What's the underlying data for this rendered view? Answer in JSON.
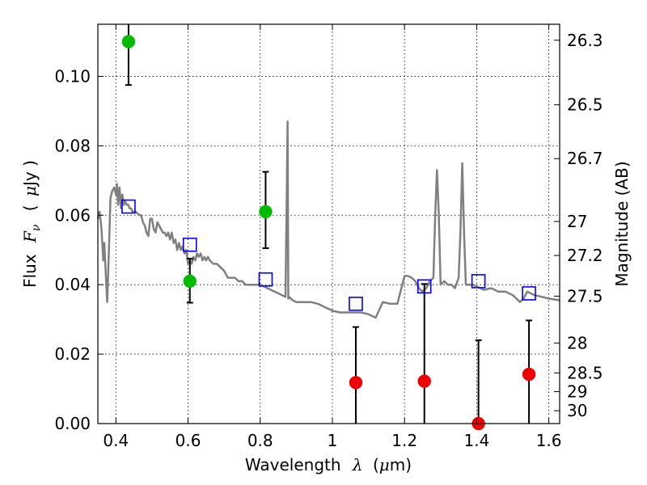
{
  "chart_data": {
    "type": "scatter",
    "title": "",
    "xlabel": {
      "prefix": "Wavelength",
      "symbol": "λ",
      "unit_open": "(",
      "unit_mu": "μ",
      "unit_rest": "m)"
    },
    "ylabel": {
      "prefix": "Flux",
      "symbol": "F",
      "sub": "ν",
      "unit_open": "(",
      "unit_mu": "μ",
      "unit_rest": "Jy )"
    },
    "y2label": "Magnitude (AB)",
    "xlim": [
      0.35,
      1.63
    ],
    "ylim": [
      0.0,
      0.115
    ],
    "grid": true,
    "x_ticks": [
      {
        "value": 0.4,
        "label": "0.4"
      },
      {
        "value": 0.6,
        "label": "0.6"
      },
      {
        "value": 0.8,
        "label": "0.8"
      },
      {
        "value": 1.0,
        "label": "1"
      },
      {
        "value": 1.2,
        "label": "1.2"
      },
      {
        "value": 1.4,
        "label": "1.4"
      },
      {
        "value": 1.6,
        "label": "1.6"
      }
    ],
    "y_ticks": [
      {
        "value": 0.0,
        "label": "0.00"
      },
      {
        "value": 0.02,
        "label": "0.02"
      },
      {
        "value": 0.04,
        "label": "0.04"
      },
      {
        "value": 0.06,
        "label": "0.06"
      },
      {
        "value": 0.08,
        "label": "0.08"
      },
      {
        "value": 0.1,
        "label": "0.10"
      }
    ],
    "y2_ticks": [
      {
        "flux": 0.1104,
        "label": "26.3"
      },
      {
        "flux": 0.0918,
        "label": "26.5"
      },
      {
        "flux": 0.0763,
        "label": "26.7"
      },
      {
        "flux": 0.0582,
        "label": "27"
      },
      {
        "flux": 0.0484,
        "label": "27.2"
      },
      {
        "flux": 0.0367,
        "label": "27.5"
      },
      {
        "flux": 0.0232,
        "label": "28"
      },
      {
        "flux": 0.0146,
        "label": "28.5"
      },
      {
        "flux": 0.0092,
        "label": "29"
      },
      {
        "flux": 0.0037,
        "label": "30"
      }
    ],
    "series": [
      {
        "name": "model-spectrum",
        "kind": "line",
        "color": "#808080",
        "x": [
          0.35,
          0.355,
          0.36,
          0.365,
          0.368,
          0.372,
          0.376,
          0.38,
          0.385,
          0.39,
          0.395,
          0.4,
          0.403,
          0.406,
          0.41,
          0.414,
          0.418,
          0.422,
          0.426,
          0.43,
          0.434,
          0.438,
          0.442,
          0.446,
          0.45,
          0.455,
          0.46,
          0.465,
          0.47,
          0.475,
          0.48,
          0.485,
          0.49,
          0.495,
          0.5,
          0.505,
          0.51,
          0.515,
          0.52,
          0.525,
          0.53,
          0.535,
          0.54,
          0.545,
          0.55,
          0.555,
          0.56,
          0.565,
          0.57,
          0.575,
          0.58,
          0.585,
          0.59,
          0.595,
          0.6,
          0.605,
          0.61,
          0.615,
          0.62,
          0.625,
          0.63,
          0.635,
          0.64,
          0.645,
          0.65,
          0.655,
          0.66,
          0.67,
          0.68,
          0.69,
          0.7,
          0.71,
          0.72,
          0.73,
          0.74,
          0.75,
          0.76,
          0.77,
          0.78,
          0.79,
          0.8,
          0.81,
          0.82,
          0.83,
          0.84,
          0.85,
          0.86,
          0.87,
          0.874,
          0.876,
          0.878,
          0.88,
          0.885,
          0.89,
          0.9,
          0.92,
          0.94,
          0.96,
          0.98,
          1.0,
          1.02,
          1.04,
          1.06,
          1.08,
          1.1,
          1.12,
          1.14,
          1.16,
          1.18,
          1.2,
          1.21,
          1.22,
          1.23,
          1.24,
          1.25,
          1.26,
          1.27,
          1.28,
          1.285,
          1.29,
          1.295,
          1.3,
          1.31,
          1.32,
          1.33,
          1.34,
          1.35,
          1.355,
          1.36,
          1.365,
          1.37,
          1.38,
          1.39,
          1.4,
          1.42,
          1.44,
          1.46,
          1.48,
          1.5,
          1.51,
          1.52,
          1.53,
          1.54,
          1.56,
          1.58,
          1.6,
          1.63
        ],
        "y": [
          0.059,
          0.061,
          0.056,
          0.047,
          0.052,
          0.043,
          0.035,
          0.048,
          0.065,
          0.067,
          0.068,
          0.066,
          0.069,
          0.063,
          0.068,
          0.062,
          0.066,
          0.063,
          0.064,
          0.063,
          0.063,
          0.062,
          0.062,
          0.061,
          0.061,
          0.061,
          0.0605,
          0.06,
          0.06,
          0.058,
          0.057,
          0.055,
          0.054,
          0.059,
          0.059,
          0.056,
          0.055,
          0.058,
          0.057,
          0.056,
          0.055,
          0.055,
          0.054,
          0.055,
          0.053,
          0.055,
          0.052,
          0.053,
          0.05,
          0.052,
          0.05,
          0.051,
          0.049,
          0.05,
          0.046,
          0.047,
          0.046,
          0.048,
          0.047,
          0.049,
          0.048,
          0.049,
          0.047,
          0.048,
          0.047,
          0.048,
          0.047,
          0.046,
          0.046,
          0.045,
          0.044,
          0.042,
          0.042,
          0.042,
          0.041,
          0.041,
          0.04,
          0.04,
          0.04,
          0.04,
          0.04,
          0.0395,
          0.039,
          0.0385,
          0.038,
          0.0375,
          0.037,
          0.0365,
          0.07,
          0.087,
          0.036,
          0.0365,
          0.036,
          0.0355,
          0.035,
          0.035,
          0.035,
          0.0345,
          0.0335,
          0.0325,
          0.032,
          0.032,
          0.032,
          0.032,
          0.0315,
          0.0305,
          0.035,
          0.0345,
          0.0345,
          0.0425,
          0.0425,
          0.042,
          0.041,
          0.039,
          0.038,
          0.039,
          0.041,
          0.042,
          0.06,
          0.073,
          0.06,
          0.04,
          0.041,
          0.04,
          0.04,
          0.039,
          0.042,
          0.055,
          0.075,
          0.055,
          0.04,
          0.04,
          0.04,
          0.0395,
          0.0385,
          0.039,
          0.038,
          0.038,
          0.037,
          0.036,
          0.035,
          0.036,
          0.038,
          0.037,
          0.0365,
          0.036,
          0.0355
        ]
      },
      {
        "name": "model-photometry",
        "kind": "open-square",
        "color": "#0000ff",
        "x": [
          0.435,
          0.605,
          0.815,
          1.065,
          1.255,
          1.405,
          1.545
        ],
        "y": [
          0.0625,
          0.0515,
          0.0415,
          0.0345,
          0.0395,
          0.041,
          0.0375
        ]
      },
      {
        "name": "detections",
        "kind": "filled-circle",
        "color": "#00bb00",
        "x": [
          0.435,
          0.605,
          0.815
        ],
        "y": [
          0.11,
          0.041,
          0.061
        ],
        "err_low": [
          0.0975,
          0.0348,
          0.0505
        ],
        "err_high": [
          0.115,
          0.0475,
          0.0725
        ]
      },
      {
        "name": "non-detections",
        "kind": "filled-circle",
        "color": "#ee0000",
        "x": [
          1.065,
          1.255,
          1.405,
          1.545
        ],
        "y": [
          0.0118,
          0.0122,
          0.0,
          0.0142
        ],
        "err_low": [
          0.0,
          0.0,
          0.0,
          0.0
        ],
        "err_high": [
          0.0278,
          0.0402,
          0.024,
          0.0297
        ]
      }
    ]
  }
}
